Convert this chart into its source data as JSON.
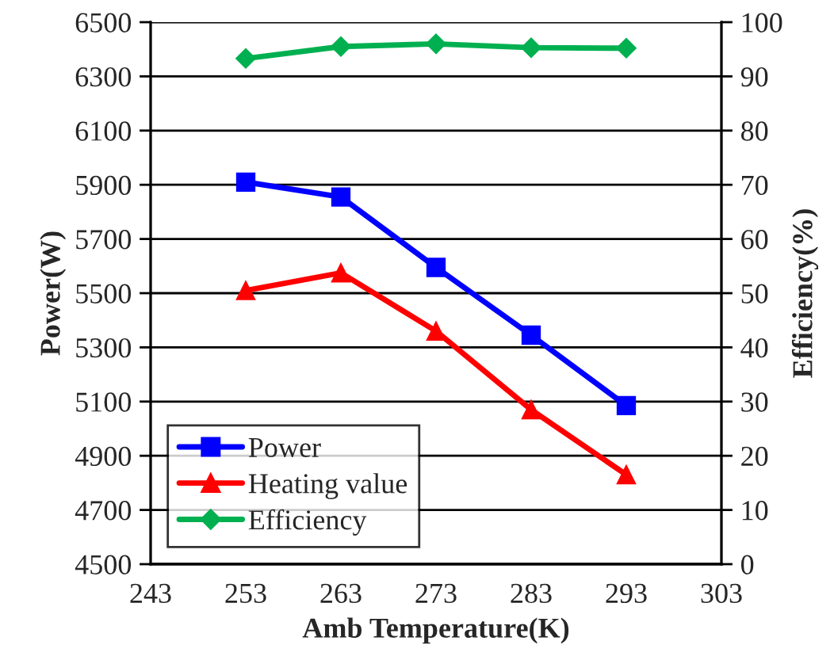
{
  "chart_data": {
    "type": "line",
    "xlabel": "Amb Temperature(K)",
    "ylabel": "Power(W)",
    "y2label": "Efficiency(%)",
    "x": [
      253,
      263,
      273,
      283,
      293
    ],
    "series": [
      {
        "name": "Power",
        "color": "#0000ff",
        "marker": "square",
        "values": [
          5910,
          5855,
          5595,
          5345,
          5085
        ]
      },
      {
        "name": "Heating value",
        "color": "#ff0000",
        "marker": "triangle",
        "values": [
          5510,
          5575,
          5360,
          5070,
          4830
        ]
      },
      {
        "name": "Efficiency",
        "color": "#00b050",
        "marker": "diamond",
        "axis": "y2",
        "values": [
          93.3,
          95.5,
          96.0,
          95.3,
          95.2
        ]
      }
    ],
    "xlim": [
      243,
      303
    ],
    "xticks": [
      243,
      253,
      263,
      273,
      283,
      293,
      303
    ],
    "ylim": [
      4500,
      6500
    ],
    "yticks": [
      4500,
      4700,
      4900,
      5100,
      5300,
      5500,
      5700,
      5900,
      6100,
      6300,
      6500
    ],
    "y2lim": [
      0,
      100
    ],
    "y2ticks": [
      0,
      10,
      20,
      30,
      40,
      50,
      60,
      70,
      80,
      90,
      100
    ],
    "grid": "y",
    "legend": "bottom left",
    "line_style": "solid"
  }
}
